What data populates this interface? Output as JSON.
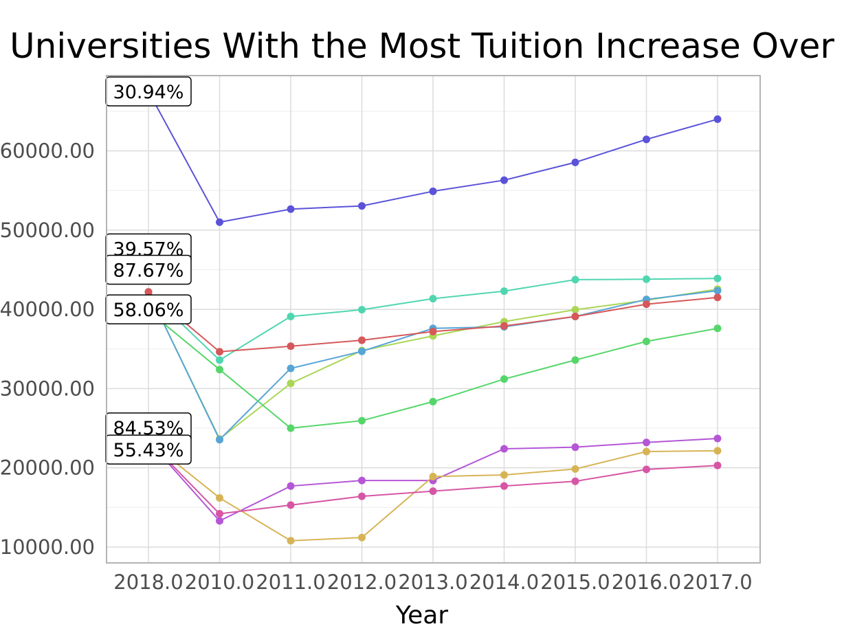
{
  "chart_data": {
    "type": "line",
    "title": "Universities With the Most Tuition Increase Over",
    "xlabel": "Year",
    "ylabel": "",
    "categories": [
      "2018.0",
      "2010.0",
      "2011.0",
      "2012.0",
      "2013.0",
      "2014.0",
      "2015.0",
      "2016.0",
      "2017.0"
    ],
    "yticks": [
      "10000.00",
      "20000.00",
      "30000.00",
      "40000.00",
      "50000.00",
      "60000.00"
    ],
    "ytick_values": [
      10000,
      20000,
      30000,
      40000,
      50000,
      60000
    ],
    "ylim": [
      8000,
      69500
    ],
    "grid": true,
    "series": [
      {
        "color": "#5b52d9",
        "values": [
          67500,
          51000,
          52650,
          53050,
          54900,
          56300,
          58550,
          61450,
          64000
        ]
      },
      {
        "color": "#4fd6b0",
        "values": [
          42200,
          33600,
          39100,
          39950,
          41350,
          42300,
          43750,
          43800,
          43900
        ]
      },
      {
        "color": "#aad656",
        "values": [
          42200,
          23650,
          30650,
          34800,
          36650,
          38450,
          39950,
          41150,
          42550
        ]
      },
      {
        "color": "#56a5d6",
        "values": [
          42200,
          23550,
          32550,
          34700,
          37600,
          37800,
          39100,
          41250,
          42350
        ]
      },
      {
        "color": "#d6585a",
        "values": [
          42200,
          34650,
          35350,
          36100,
          37200,
          37900,
          39100,
          40650,
          41500
        ]
      },
      {
        "color": "#56d66a",
        "values": [
          39800,
          32400,
          25000,
          25950,
          28350,
          31200,
          33600,
          35950,
          37600
        ]
      },
      {
        "color": "#b456d6",
        "values": [
          23400,
          13300,
          17700,
          18400,
          18400,
          22400,
          22600,
          23200,
          23700
        ]
      },
      {
        "color": "#d6b456",
        "values": [
          23400,
          16200,
          10800,
          11200,
          18900,
          19100,
          19850,
          22050,
          22150
        ]
      },
      {
        "color": "#d656a5",
        "values": [
          23400,
          14200,
          15300,
          16400,
          17050,
          17700,
          18300,
          19800,
          20300
        ]
      }
    ],
    "annotations": [
      {
        "text": "30.94%",
        "y": 67500
      },
      {
        "text": "39.57%",
        "y": 47700
      },
      {
        "text": "87.67%",
        "y": 45000
      },
      {
        "text": "58.06%",
        "y": 40000
      },
      {
        "text": "84.53%",
        "y": 25100
      },
      {
        "text": "55.43%",
        "y": 22300
      }
    ]
  }
}
